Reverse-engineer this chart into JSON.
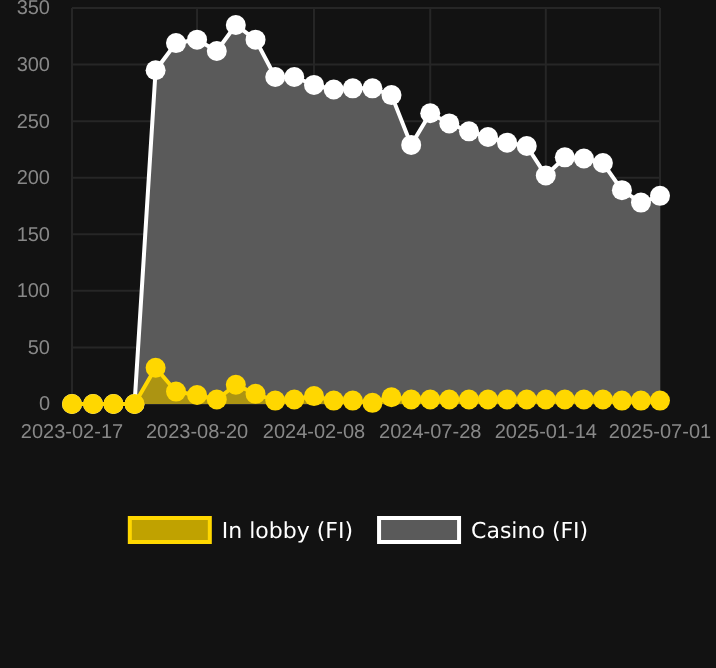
{
  "chart_data": {
    "type": "area",
    "x": [
      "2023-02-17",
      "2023-03-20",
      "2023-04-19",
      "2023-05-20",
      "2023-06-20",
      "2023-07-20",
      "2023-08-20",
      "2023-09-18",
      "2023-10-16",
      "2023-11-14",
      "2023-12-13",
      "2024-01-10",
      "2024-02-08",
      "2024-03-08",
      "2024-04-05",
      "2024-05-04",
      "2024-06-01",
      "2024-06-30",
      "2024-07-28",
      "2024-08-25",
      "2024-09-23",
      "2024-10-21",
      "2024-11-18",
      "2024-12-17",
      "2025-01-14",
      "2025-02-11",
      "2025-03-11",
      "2025-04-08",
      "2025-05-06",
      "2025-06-03",
      "2025-07-01"
    ],
    "series": [
      {
        "name": "Casino (FI)",
        "color": "#ffffff",
        "values": [
          0,
          0,
          0,
          0,
          295,
          319,
          322,
          312,
          335,
          322,
          289,
          289,
          282,
          278,
          279,
          279,
          273,
          229,
          257,
          248,
          241,
          236,
          231,
          228,
          202,
          218,
          217,
          213,
          189,
          178,
          184
        ]
      },
      {
        "name": "In lobby (FI)",
        "color": "#ffd700",
        "values": [
          0,
          0,
          0,
          0,
          32,
          11,
          8,
          4,
          17,
          9,
          3,
          4,
          7,
          3,
          3,
          1,
          6,
          4,
          4,
          4,
          4,
          4,
          4,
          4,
          4,
          4,
          4,
          4,
          3,
          3,
          3
        ]
      }
    ],
    "xlim": [
      "2023-02-17",
      "2025-07-01"
    ],
    "ylim": [
      0,
      350
    ],
    "yticks": [
      0,
      50,
      100,
      150,
      200,
      250,
      300,
      350
    ],
    "xticks": [
      "2023-02-17",
      "2023-08-20",
      "2024-02-08",
      "2024-07-28",
      "2025-01-14",
      "2025-07-01"
    ],
    "grid": true,
    "legend": "bottom",
    "marker": "circle"
  }
}
